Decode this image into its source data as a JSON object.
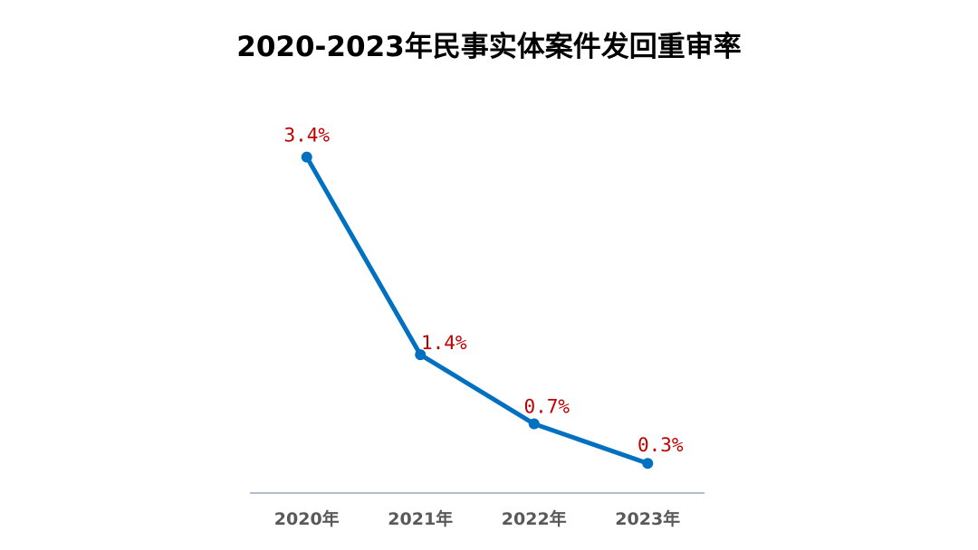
{
  "chart_data": {
    "type": "line",
    "title": "2020-2023年民事实体案件发回重审率",
    "xlabel": "",
    "ylabel": "",
    "categories": [
      "2020年",
      "2021年",
      "2022年",
      "2023年"
    ],
    "series": [
      {
        "values": [
          3.4,
          1.4,
          0.7,
          0.3
        ],
        "data_labels": [
          "3.4%",
          "1.4%",
          "0.7%",
          "0.3%"
        ],
        "color": "#0070c0"
      }
    ],
    "ylim": [
      0,
      3.8
    ],
    "grid": false,
    "legend": "none",
    "axis_line_color": "#8497b0",
    "label_color": "#c00000",
    "tick_label_color": "#595959"
  }
}
